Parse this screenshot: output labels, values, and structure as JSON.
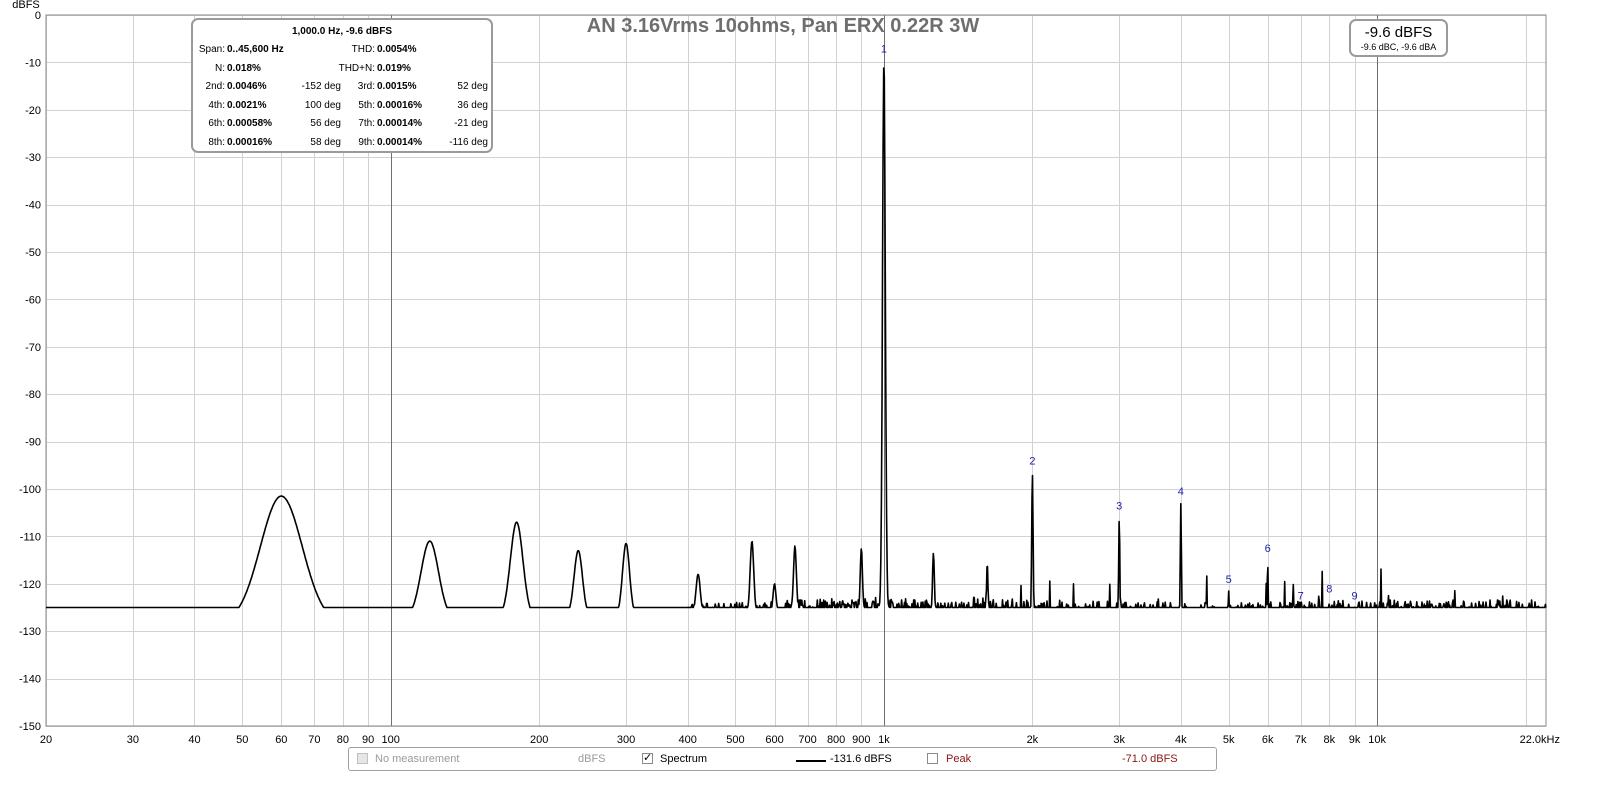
{
  "chart_data": {
    "type": "line",
    "title": "AN 3.16Vrms 10ohms, Pan ERX 0.22R 3W",
    "ylabel": "dBFS",
    "xunit": "Hz",
    "xscale": "log",
    "xlim": [
      20,
      22000
    ],
    "ylim": [
      -150,
      0
    ],
    "grid": true,
    "yticks": [
      "0",
      "-10",
      "-20",
      "-30",
      "-40",
      "-50",
      "-60",
      "-70",
      "-80",
      "-90",
      "-100",
      "-110",
      "-120",
      "-130",
      "-140",
      "-150"
    ],
    "ytick_values": [
      0,
      -10,
      -20,
      -30,
      -40,
      -50,
      -60,
      -70,
      -80,
      -90,
      -100,
      -110,
      -120,
      -130,
      -140,
      -150
    ],
    "xticks": [
      {
        "f": 20,
        "label": "20"
      },
      {
        "f": 30,
        "label": "30"
      },
      {
        "f": 40,
        "label": "40"
      },
      {
        "f": 50,
        "label": "50"
      },
      {
        "f": 60,
        "label": "60"
      },
      {
        "f": 70,
        "label": "70"
      },
      {
        "f": 80,
        "label": "80"
      },
      {
        "f": 90,
        "label": "90"
      },
      {
        "f": 100,
        "label": "100"
      },
      {
        "f": 200,
        "label": "200"
      },
      {
        "f": 300,
        "label": "300"
      },
      {
        "f": 400,
        "label": "400"
      },
      {
        "f": 500,
        "label": "500"
      },
      {
        "f": 600,
        "label": "600"
      },
      {
        "f": 700,
        "label": "700"
      },
      {
        "f": 800,
        "label": "800"
      },
      {
        "f": 900,
        "label": "900"
      },
      {
        "f": 1000,
        "label": "1k"
      },
      {
        "f": 2000,
        "label": "2k"
      },
      {
        "f": 3000,
        "label": "3k"
      },
      {
        "f": 4000,
        "label": "4k"
      },
      {
        "f": 5000,
        "label": "5k"
      },
      {
        "f": 6000,
        "label": "6k"
      },
      {
        "f": 7000,
        "label": "7k"
      },
      {
        "f": 8000,
        "label": "8k"
      },
      {
        "f": 9000,
        "label": "9k"
      },
      {
        "f": 10000,
        "label": "10k"
      },
      {
        "f": 22000,
        "label": "22.0kHz"
      }
    ],
    "series": [
      {
        "name": "Spectrum",
        "color": "#000000",
        "baseline": [
          [
            20,
            -131.5
          ],
          [
            30,
            -130
          ],
          [
            35,
            -129
          ],
          [
            40,
            -129.5
          ],
          [
            45,
            -129
          ],
          [
            100,
            -127.5
          ],
          [
            200,
            -127
          ],
          [
            500,
            -126
          ],
          [
            1000,
            -125
          ],
          [
            2000,
            -127
          ],
          [
            5000,
            -127.5
          ],
          [
            10000,
            -127
          ],
          [
            22000,
            -127
          ]
        ],
        "peaks": [
          {
            "f": 60,
            "db": -101.5,
            "w": 0.06
          },
          {
            "f": 120,
            "db": -111,
            "w": 0.025
          },
          {
            "f": 180,
            "db": -107,
            "w": 0.018
          },
          {
            "f": 240,
            "db": -113,
            "w": 0.012
          },
          {
            "f": 300,
            "db": -111.5,
            "w": 0.01
          },
          {
            "f": 420,
            "db": -118,
            "w": 0.006
          },
          {
            "f": 540,
            "db": -111,
            "w": 0.005
          },
          {
            "f": 600,
            "db": -120,
            "w": 0.004
          },
          {
            "f": 660,
            "db": -112,
            "w": 0.004
          },
          {
            "f": 900,
            "db": -112.5,
            "w": 0.003
          },
          {
            "f": 1000,
            "db": -9.6,
            "w": 0.004
          },
          {
            "f": 1260,
            "db": -113.5,
            "w": 0.0025
          },
          {
            "f": 1620,
            "db": -115.5,
            "w": 0.002
          },
          {
            "f": 2000,
            "db": -96.5,
            "w": 0.002
          },
          {
            "f": 3000,
            "db": -106,
            "w": 0.0016
          },
          {
            "f": 4000,
            "db": -103,
            "w": 0.0015
          },
          {
            "f": 5000,
            "db": -121.5,
            "w": 0.0013
          },
          {
            "f": 6000,
            "db": -115,
            "w": 0.0012
          },
          {
            "f": 7000,
            "db": -125,
            "w": 0.0011
          },
          {
            "f": 8000,
            "db": -123.5,
            "w": 0.001
          },
          {
            "f": 9000,
            "db": -125,
            "w": 0.001
          }
        ]
      }
    ],
    "harmonic_markers": [
      {
        "label": "1",
        "f": 1000,
        "db": -9.6
      },
      {
        "label": "2",
        "f": 2000,
        "db": -96.5
      },
      {
        "label": "3",
        "f": 3000,
        "db": -106
      },
      {
        "label": "4",
        "f": 4000,
        "db": -103
      },
      {
        "label": "5",
        "f": 5000,
        "db": -121.5
      },
      {
        "label": "6",
        "f": 6000,
        "db": -115
      },
      {
        "label": "7",
        "f": 7000,
        "db": -125
      },
      {
        "label": "8",
        "f": 8000,
        "db": -123.5
      },
      {
        "label": "9",
        "f": 9000,
        "db": -125
      }
    ]
  },
  "info_box": {
    "header": "1,000.0 Hz, -9.6 dBFS",
    "span_label": "Span:",
    "span_value": "0..45,600 Hz",
    "thd_label": "THD:",
    "thd_value": "0.0054%",
    "n_label": "N:",
    "n_value": "0.018%",
    "thdn_label": "THD+N:",
    "thdn_value": "0.019%",
    "harmonics": [
      {
        "l1": "2nd:",
        "v1": "0.0046%",
        "d1": "-152 deg",
        "l2": "3rd:",
        "v2": "0.0015%",
        "d2": "52 deg"
      },
      {
        "l1": "4th:",
        "v1": "0.0021%",
        "d1": "100 deg",
        "l2": "5th:",
        "v2": "0.00016%",
        "d2": "36 deg"
      },
      {
        "l1": "6th:",
        "v1": "0.00058%",
        "d1": "56 deg",
        "l2": "7th:",
        "v2": "0.00014%",
        "d2": "-21 deg"
      },
      {
        "l1": "8th:",
        "v1": "0.00016%",
        "d1": "58 deg",
        "l2": "9th:",
        "v2": "0.00014%",
        "d2": "-116 deg"
      }
    ]
  },
  "level_box": {
    "main": "-9.6 dBFS",
    "sub": "-9.6 dBC, -9.6 dBA"
  },
  "legend": {
    "no_measurement": "No measurement",
    "unit1": "dBFS",
    "spectrum_label": "Spectrum",
    "spectrum_checked": true,
    "spectrum_value": "-131.6 dBFS",
    "peak_label": "Peak",
    "peak_checked": false,
    "peak_value": "-71.0 dBFS",
    "peak_color": "#8a1515"
  }
}
